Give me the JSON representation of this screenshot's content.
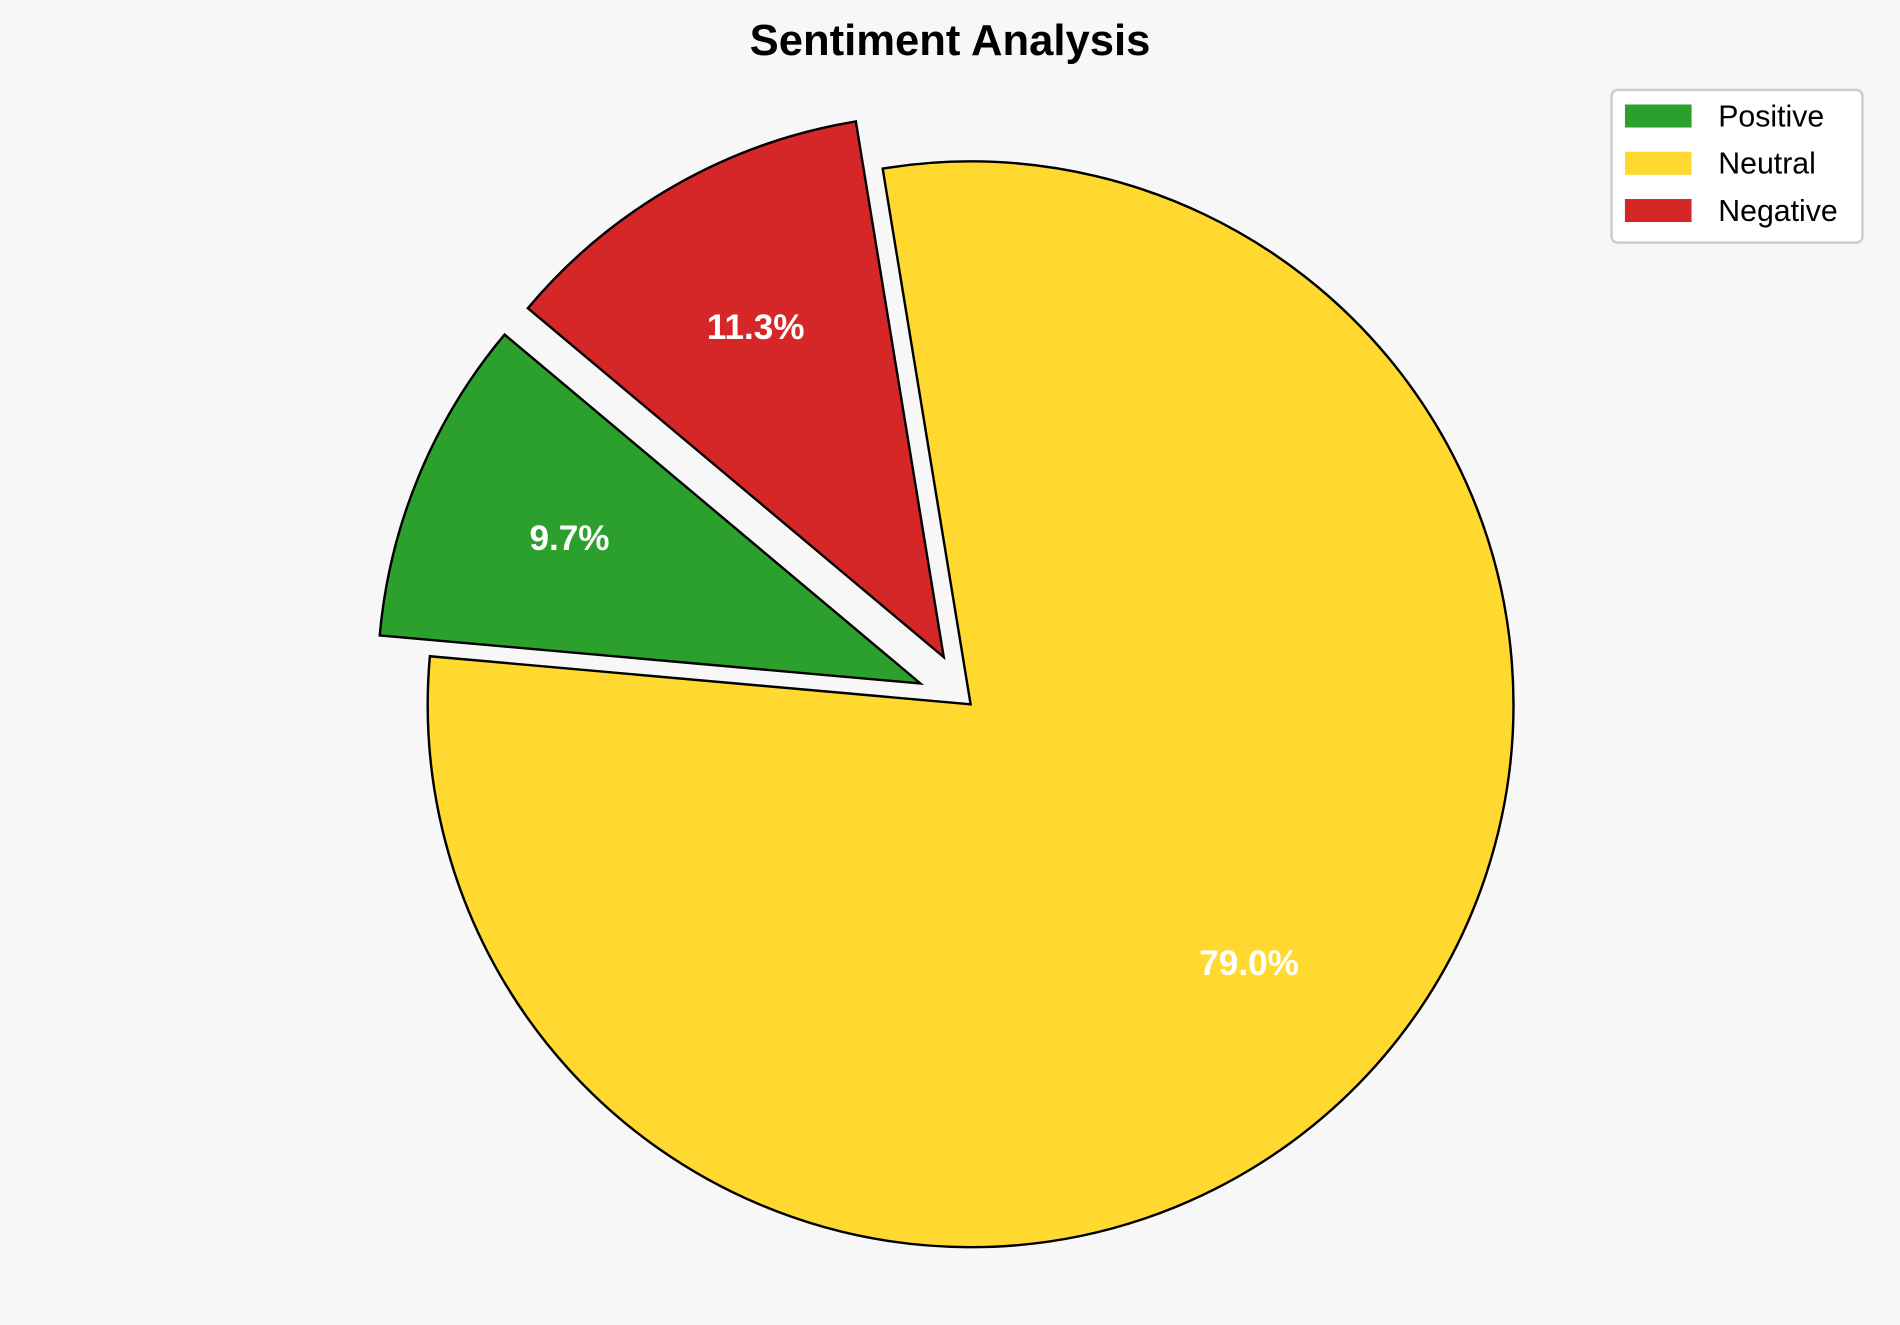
{
  "chart_data": {
    "type": "pie",
    "title": "Sentiment Analysis",
    "categories": [
      "Positive",
      "Neutral",
      "Negative"
    ],
    "values": [
      9.7,
      79.0,
      11.3
    ],
    "labels": [
      "9.7%",
      "79.0%",
      "11.3%"
    ],
    "colors": [
      "#2ca02c",
      "#ffd92f",
      "#d62728"
    ],
    "explode": [
      0.1,
      0,
      0.1
    ],
    "start_angle": 140,
    "legend_position": "top-right",
    "background": "#f7f7f7"
  }
}
